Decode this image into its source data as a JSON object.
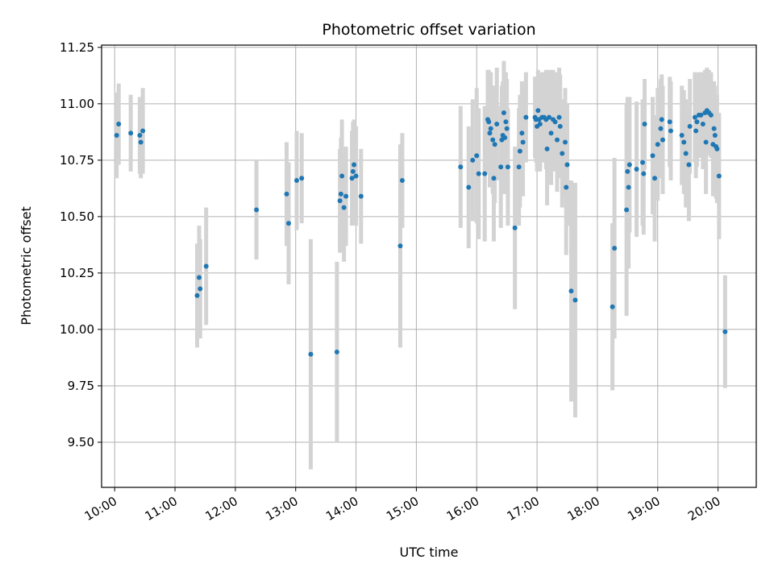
{
  "chart_data": {
    "type": "scatter",
    "title": "Photometric offset variation",
    "xlabel": "UTC time",
    "ylabel": "Photometric offset",
    "grid": true,
    "xlim": [
      "09:47",
      "20:38"
    ],
    "ylim": [
      9.3,
      11.26
    ],
    "x_ticks": [
      "10:00",
      "11:00",
      "12:00",
      "13:00",
      "14:00",
      "15:00",
      "16:00",
      "17:00",
      "18:00",
      "19:00",
      "20:00"
    ],
    "y_ticks": [
      9.5,
      9.75,
      10.0,
      10.25,
      10.5,
      10.75,
      11.0,
      11.25
    ],
    "y_tick_labels": [
      "9.50",
      "9.75",
      "10.00",
      "10.25",
      "10.50",
      "10.75",
      "11.00",
      "11.25"
    ],
    "colors": {
      "points": "#1f77b4",
      "error_bars": "#d3d3d3",
      "grid": "#b0b0b0"
    },
    "points": [
      {
        "x": "10:02",
        "y": 10.86,
        "err": 0.19
      },
      {
        "x": "10:04",
        "y": 10.91,
        "err": 0.18
      },
      {
        "x": "10:16",
        "y": 10.87,
        "err": 0.17
      },
      {
        "x": "10:25",
        "y": 10.86,
        "err": 0.17
      },
      {
        "x": "10:26",
        "y": 10.83,
        "err": 0.16
      },
      {
        "x": "10:28",
        "y": 10.88,
        "err": 0.19
      },
      {
        "x": "11:22",
        "y": 10.15,
        "err": 0.23
      },
      {
        "x": "11:24",
        "y": 10.23,
        "err": 0.23
      },
      {
        "x": "11:25",
        "y": 10.18,
        "err": 0.22
      },
      {
        "x": "11:31",
        "y": 10.28,
        "err": 0.26
      },
      {
        "x": "12:21",
        "y": 10.53,
        "err": 0.22
      },
      {
        "x": "12:51",
        "y": 10.6,
        "err": 0.23
      },
      {
        "x": "12:53",
        "y": 10.47,
        "err": 0.27
      },
      {
        "x": "13:01",
        "y": 10.66,
        "err": 0.22
      },
      {
        "x": "13:06",
        "y": 10.67,
        "err": 0.2
      },
      {
        "x": "13:15",
        "y": 9.89,
        "err": 0.51
      },
      {
        "x": "13:41",
        "y": 9.9,
        "err": 0.4
      },
      {
        "x": "13:44",
        "y": 10.57,
        "err": 0.23
      },
      {
        "x": "13:45",
        "y": 10.6,
        "err": 0.25
      },
      {
        "x": "13:46",
        "y": 10.68,
        "err": 0.25
      },
      {
        "x": "13:48",
        "y": 10.54,
        "err": 0.24
      },
      {
        "x": "13:50",
        "y": 10.59,
        "err": 0.22
      },
      {
        "x": "13:56",
        "y": 10.67,
        "err": 0.21
      },
      {
        "x": "13:57",
        "y": 10.7,
        "err": 0.22
      },
      {
        "x": "13:58",
        "y": 10.73,
        "err": 0.2
      },
      {
        "x": "14:00",
        "y": 10.68,
        "err": 0.22
      },
      {
        "x": "14:05",
        "y": 10.59,
        "err": 0.21
      },
      {
        "x": "14:44",
        "y": 10.37,
        "err": 0.45
      },
      {
        "x": "14:46",
        "y": 10.66,
        "err": 0.21
      },
      {
        "x": "15:44",
        "y": 10.72,
        "err": 0.27
      },
      {
        "x": "15:52",
        "y": 10.63,
        "err": 0.27
      },
      {
        "x": "15:56",
        "y": 10.75,
        "err": 0.27
      },
      {
        "x": "16:00",
        "y": 10.77,
        "err": 0.3
      },
      {
        "x": "16:02",
        "y": 10.69,
        "err": 0.29
      },
      {
        "x": "16:08",
        "y": 10.69,
        "err": 0.3
      },
      {
        "x": "16:11",
        "y": 10.93,
        "err": 0.22
      },
      {
        "x": "16:12",
        "y": 10.92,
        "err": 0.23
      },
      {
        "x": "16:13",
        "y": 10.87,
        "err": 0.24
      },
      {
        "x": "16:14",
        "y": 10.89,
        "err": 0.25
      },
      {
        "x": "16:16",
        "y": 10.84,
        "err": 0.24
      },
      {
        "x": "16:17",
        "y": 10.67,
        "err": 0.28
      },
      {
        "x": "16:18",
        "y": 10.82,
        "err": 0.26
      },
      {
        "x": "16:20",
        "y": 10.91,
        "err": 0.25
      },
      {
        "x": "16:24",
        "y": 10.72,
        "err": 0.27
      },
      {
        "x": "16:25",
        "y": 10.84,
        "err": 0.24
      },
      {
        "x": "16:26",
        "y": 10.86,
        "err": 0.24
      },
      {
        "x": "16:27",
        "y": 10.96,
        "err": 0.23
      },
      {
        "x": "16:28",
        "y": 10.85,
        "err": 0.25
      },
      {
        "x": "16:29",
        "y": 10.92,
        "err": 0.22
      },
      {
        "x": "16:30",
        "y": 10.89,
        "err": 0.22
      },
      {
        "x": "16:31",
        "y": 10.72,
        "err": 0.26
      },
      {
        "x": "16:38",
        "y": 10.45,
        "err": 0.36
      },
      {
        "x": "16:42",
        "y": 10.72,
        "err": 0.26
      },
      {
        "x": "16:43",
        "y": 10.79,
        "err": 0.25
      },
      {
        "x": "16:45",
        "y": 10.87,
        "err": 0.23
      },
      {
        "x": "16:46",
        "y": 10.83,
        "err": 0.24
      },
      {
        "x": "16:49",
        "y": 10.94,
        "err": 0.2
      },
      {
        "x": "16:58",
        "y": 10.94,
        "err": 0.18
      },
      {
        "x": "16:59",
        "y": 10.93,
        "err": 0.19
      },
      {
        "x": "17:00",
        "y": 10.9,
        "err": 0.2
      },
      {
        "x": "17:01",
        "y": 10.97,
        "err": 0.18
      },
      {
        "x": "17:02",
        "y": 10.93,
        "err": 0.2
      },
      {
        "x": "17:03",
        "y": 10.91,
        "err": 0.21
      },
      {
        "x": "17:05",
        "y": 10.94,
        "err": 0.2
      },
      {
        "x": "17:07",
        "y": 10.94,
        "err": 0.2
      },
      {
        "x": "17:09",
        "y": 10.93,
        "err": 0.22
      },
      {
        "x": "17:10",
        "y": 10.8,
        "err": 0.25
      },
      {
        "x": "17:12",
        "y": 10.94,
        "err": 0.21
      },
      {
        "x": "17:14",
        "y": 10.87,
        "err": 0.23
      },
      {
        "x": "17:16",
        "y": 10.93,
        "err": 0.22
      },
      {
        "x": "17:18",
        "y": 10.92,
        "err": 0.22
      },
      {
        "x": "17:20",
        "y": 10.84,
        "err": 0.23
      },
      {
        "x": "17:22",
        "y": 10.94,
        "err": 0.22
      },
      {
        "x": "17:23",
        "y": 10.9,
        "err": 0.23
      },
      {
        "x": "17:25",
        "y": 10.78,
        "err": 0.24
      },
      {
        "x": "17:28",
        "y": 10.83,
        "err": 0.24
      },
      {
        "x": "17:30",
        "y": 10.73,
        "err": 0.27
      },
      {
        "x": "17:29",
        "y": 10.63,
        "err": 0.3
      },
      {
        "x": "17:34",
        "y": 10.17,
        "err": 0.49
      },
      {
        "x": "17:38",
        "y": 10.13,
        "err": 0.52
      },
      {
        "x": "18:15",
        "y": 10.1,
        "err": 0.37
      },
      {
        "x": "18:17",
        "y": 10.36,
        "err": 0.4
      },
      {
        "x": "18:29",
        "y": 10.53,
        "err": 0.47
      },
      {
        "x": "18:30",
        "y": 10.7,
        "err": 0.33
      },
      {
        "x": "18:32",
        "y": 10.73,
        "err": 0.3
      },
      {
        "x": "18:31",
        "y": 10.63,
        "err": 0.36
      },
      {
        "x": "18:39",
        "y": 10.71,
        "err": 0.3
      },
      {
        "x": "18:45",
        "y": 10.74,
        "err": 0.28
      },
      {
        "x": "18:46",
        "y": 10.69,
        "err": 0.27
      },
      {
        "x": "18:47",
        "y": 10.91,
        "err": 0.2
      },
      {
        "x": "18:55",
        "y": 10.77,
        "err": 0.26
      },
      {
        "x": "18:57",
        "y": 10.67,
        "err": 0.28
      },
      {
        "x": "19:00",
        "y": 10.82,
        "err": 0.25
      },
      {
        "x": "19:03",
        "y": 10.89,
        "err": 0.22
      },
      {
        "x": "19:04",
        "y": 10.93,
        "err": 0.2
      },
      {
        "x": "19:05",
        "y": 10.84,
        "err": 0.24
      },
      {
        "x": "19:12",
        "y": 10.92,
        "err": 0.2
      },
      {
        "x": "19:13",
        "y": 10.88,
        "err": 0.22
      },
      {
        "x": "19:24",
        "y": 10.86,
        "err": 0.22
      },
      {
        "x": "19:26",
        "y": 10.83,
        "err": 0.23
      },
      {
        "x": "19:28",
        "y": 10.78,
        "err": 0.24
      },
      {
        "x": "19:31",
        "y": 10.73,
        "err": 0.25
      },
      {
        "x": "19:32",
        "y": 10.9,
        "err": 0.21
      },
      {
        "x": "19:37",
        "y": 10.94,
        "err": 0.2
      },
      {
        "x": "19:38",
        "y": 10.88,
        "err": 0.21
      },
      {
        "x": "19:39",
        "y": 10.92,
        "err": 0.2
      },
      {
        "x": "19:41",
        "y": 10.95,
        "err": 0.19
      },
      {
        "x": "19:43",
        "y": 10.95,
        "err": 0.19
      },
      {
        "x": "19:45",
        "y": 10.91,
        "err": 0.2
      },
      {
        "x": "19:47",
        "y": 10.96,
        "err": 0.19
      },
      {
        "x": "19:48",
        "y": 10.83,
        "err": 0.23
      },
      {
        "x": "19:49",
        "y": 10.97,
        "err": 0.19
      },
      {
        "x": "19:51",
        "y": 10.96,
        "err": 0.19
      },
      {
        "x": "19:53",
        "y": 10.95,
        "err": 0.19
      },
      {
        "x": "19:55",
        "y": 10.82,
        "err": 0.23
      },
      {
        "x": "19:56",
        "y": 10.89,
        "err": 0.21
      },
      {
        "x": "19:57",
        "y": 10.86,
        "err": 0.22
      },
      {
        "x": "19:58",
        "y": 10.81,
        "err": 0.23
      },
      {
        "x": "19:59",
        "y": 10.8,
        "err": 0.24
      },
      {
        "x": "20:01",
        "y": 10.68,
        "err": 0.28
      },
      {
        "x": "20:07",
        "y": 9.99,
        "err": 0.25
      }
    ]
  }
}
